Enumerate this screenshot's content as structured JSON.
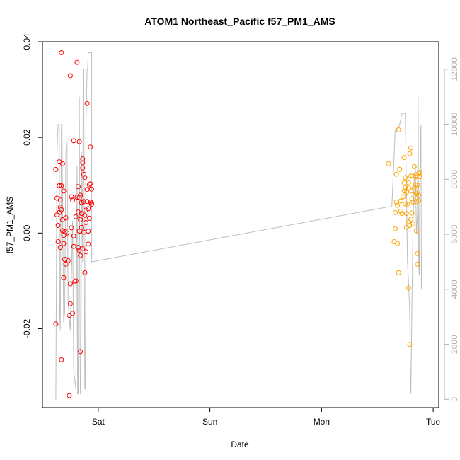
{
  "chart_data": {
    "type": "scatter",
    "title": "ATOM1 Northeast_Pacific f57_PM1_AMS",
    "xlabel": "Date",
    "ylabel": "f57_PM1_AMS",
    "x_ticks": [
      "Sat",
      "Sun",
      "Mon",
      "Tue"
    ],
    "y_ticks": [
      "0.04",
      "0.02",
      "0.00",
      "-0.02"
    ],
    "y_tick_values": [
      0.04,
      0.02,
      0.0,
      -0.02
    ],
    "y2_ticks": [
      "0",
      "2000",
      "4000",
      "6000",
      "8000",
      "10000",
      "12000"
    ],
    "y2_tick_values": [
      0,
      2000,
      4000,
      6000,
      8000,
      10000,
      12000
    ],
    "ylim": [
      -0.0365,
      0.04
    ],
    "y2lim": [
      -300,
      13000
    ],
    "xlim_days": [
      -0.5,
      3.05
    ],
    "grid": false,
    "colors": {
      "segment1": "#ff0000",
      "segment2": "#ffa500",
      "altitude_line": "#bebebe"
    },
    "series": [
      {
        "color": "#ff0000",
        "points": [
          [
            -0.38,
            0.0133
          ],
          [
            -0.38,
            -0.019
          ],
          [
            -0.37,
            0.0073
          ],
          [
            -0.37,
            0.0038
          ],
          [
            -0.36,
            0.0016
          ],
          [
            -0.36,
            -0.0018
          ],
          [
            -0.35,
            0.0043
          ],
          [
            -0.35,
            0.0099
          ],
          [
            -0.35,
            0.0149
          ],
          [
            -0.34,
            0.0069
          ],
          [
            -0.34,
            0.0054
          ],
          [
            -0.34,
            -0.003
          ],
          [
            -0.33,
            0.0049
          ],
          [
            -0.33,
            -0.0265
          ],
          [
            -0.33,
            0.0377
          ],
          [
            -0.33,
            0.0099
          ],
          [
            -0.32,
            0.0145
          ],
          [
            -0.32,
            0.0028
          ],
          [
            -0.32,
            0.0005
          ],
          [
            -0.31,
            0.0088
          ],
          [
            -0.31,
            -0.0005
          ],
          [
            -0.31,
            -0.0022
          ],
          [
            -0.31,
            -0.0093
          ],
          [
            -0.3,
            0.0003
          ],
          [
            -0.3,
            -0.0055
          ],
          [
            -0.29,
            0.0032
          ],
          [
            -0.29,
            -0.0065
          ],
          [
            -0.28,
            0.0
          ],
          [
            -0.27,
            -0.0058
          ],
          [
            -0.26,
            -0.034
          ],
          [
            -0.26,
            -0.0172
          ],
          [
            -0.25,
            -0.0106
          ],
          [
            -0.25,
            -0.0148
          ],
          [
            -0.25,
            0.0329
          ],
          [
            -0.24,
            0.0076
          ],
          [
            -0.24,
            0.0011
          ],
          [
            -0.23,
            -0.0168
          ],
          [
            -0.23,
            0.0069
          ],
          [
            -0.22,
            -0.0028
          ],
          [
            -0.22,
            0.0193
          ],
          [
            -0.22,
            -0.0006
          ],
          [
            -0.21,
            -0.0102
          ],
          [
            -0.2,
            0.0034
          ],
          [
            -0.2,
            -0.01
          ],
          [
            -0.19,
            0.0357
          ],
          [
            -0.19,
            0.0075
          ],
          [
            -0.18,
            0.0044
          ],
          [
            -0.18,
            -0.003
          ],
          [
            -0.18,
            0.0097
          ],
          [
            -0.17,
            0.0074
          ],
          [
            -0.17,
            0.0191
          ],
          [
            -0.17,
            0.0004
          ],
          [
            -0.17,
            -0.0036
          ],
          [
            -0.16,
            -0.0248
          ],
          [
            -0.16,
            0.0079
          ],
          [
            -0.16,
            0.0028
          ],
          [
            -0.16,
            -0.0047
          ],
          [
            -0.15,
            0.0064
          ],
          [
            -0.15,
            0.0041
          ],
          [
            -0.15,
            0.0012
          ],
          [
            -0.14,
            0.0147
          ],
          [
            -0.14,
            0.0155
          ],
          [
            -0.14,
            0.0136
          ],
          [
            -0.14,
            -0.0033
          ],
          [
            -0.13,
            0.0002
          ],
          [
            -0.13,
            0.0066
          ],
          [
            -0.13,
            0.0123
          ],
          [
            -0.12,
            0.0116
          ],
          [
            -0.12,
            0.0037
          ],
          [
            -0.12,
            -0.0083
          ],
          [
            -0.11,
            0.0048
          ],
          [
            -0.11,
            0.0022
          ],
          [
            -0.11,
            -0.0039
          ],
          [
            -0.1,
            0.0091
          ],
          [
            -0.1,
            0.0066
          ],
          [
            -0.1,
            0.0271
          ],
          [
            -0.09,
            0.0051
          ],
          [
            -0.09,
            -0.0023
          ],
          [
            -0.09,
            0.0004
          ],
          [
            -0.08,
            0.0031
          ],
          [
            -0.07,
            0.0065
          ],
          [
            -0.07,
            0.0103
          ],
          [
            -0.07,
            0.018
          ],
          [
            -0.06,
            0.006
          ],
          [
            -0.06,
            0.0063
          ],
          [
            -0.06,
            0.0092
          ],
          [
            -0.08,
            0.0101
          ]
        ]
      },
      {
        "color": "#ffa500",
        "points": [
          [
            2.6,
            0.0145
          ],
          [
            2.65,
            -0.0018
          ],
          [
            2.66,
            0.0043
          ],
          [
            2.66,
            0.0009
          ],
          [
            2.67,
            0.0123
          ],
          [
            2.67,
            0.0065
          ],
          [
            2.68,
            0.0058
          ],
          [
            2.68,
            -0.0022
          ],
          [
            2.69,
            0.0216
          ],
          [
            2.69,
            -0.0083
          ],
          [
            2.7,
            0.0133
          ],
          [
            2.71,
            0.0046
          ],
          [
            2.71,
            0.0067
          ],
          [
            2.72,
            0.0041
          ],
          [
            2.73,
            0.0076
          ],
          [
            2.74,
            0.0105
          ],
          [
            2.74,
            0.0158
          ],
          [
            2.74,
            0.0088
          ],
          [
            2.75,
            0.0116
          ],
          [
            2.75,
            0.0095
          ],
          [
            2.75,
            0.0061
          ],
          [
            2.76,
            0.0085
          ],
          [
            2.76,
            0.0012
          ],
          [
            2.76,
            0.0041
          ],
          [
            2.77,
            0.0061
          ],
          [
            2.78,
            -0.0115
          ],
          [
            2.78,
            0.0094
          ],
          [
            2.78,
            0.0105
          ],
          [
            2.78,
            0.0023
          ],
          [
            2.79,
            0.0016
          ],
          [
            2.79,
            0.0166
          ],
          [
            2.79,
            -0.0233
          ],
          [
            2.8,
            0.0119
          ],
          [
            2.8,
            0.0178
          ],
          [
            2.8,
            0.0088
          ],
          [
            2.8,
            0.0029
          ],
          [
            2.81,
            0.0042
          ],
          [
            2.81,
            0.0072
          ],
          [
            2.81,
            0.0121
          ],
          [
            2.82,
            0.0019
          ],
          [
            2.82,
            0.0065
          ],
          [
            2.83,
            0.0139
          ],
          [
            2.83,
            0.0094
          ],
          [
            2.84,
            0.0086
          ],
          [
            2.84,
            0.0101
          ],
          [
            2.84,
            0.0117
          ],
          [
            2.85,
            0.0121
          ],
          [
            2.85,
            0.0082
          ],
          [
            2.85,
            0.0066
          ],
          [
            2.85,
            0.0005
          ],
          [
            2.86,
            0.0101
          ],
          [
            2.86,
            -0.0043
          ],
          [
            2.86,
            -0.0065
          ],
          [
            2.87,
            0.0125
          ],
          [
            2.87,
            0.0079
          ],
          [
            2.87,
            0.0068
          ],
          [
            2.88,
            0.0127
          ],
          [
            2.88,
            0.0118
          ]
        ]
      }
    ],
    "altitude_line": [
      [
        -0.38,
        -2
      ],
      [
        -0.37,
        9000
      ],
      [
        -0.36,
        10000
      ],
      [
        -0.35,
        10000
      ],
      [
        -0.345,
        3000
      ],
      [
        -0.34,
        2500
      ],
      [
        -0.335,
        6000
      ],
      [
        -0.33,
        10000
      ],
      [
        -0.325,
        10000
      ],
      [
        -0.32,
        7000
      ],
      [
        -0.31,
        2800
      ],
      [
        -0.3,
        3200
      ],
      [
        -0.29,
        9000
      ],
      [
        -0.28,
        9500
      ],
      [
        -0.27,
        3500
      ],
      [
        -0.25,
        2500
      ],
      [
        -0.23,
        6500
      ],
      [
        -0.22,
        1000
      ],
      [
        -0.2,
        400
      ],
      [
        -0.19,
        8500
      ],
      [
        -0.185,
        200
      ],
      [
        -0.18,
        200
      ],
      [
        -0.17,
        11000
      ],
      [
        -0.165,
        4000
      ],
      [
        -0.16,
        200
      ],
      [
        -0.155,
        200
      ],
      [
        -0.15,
        9000
      ],
      [
        -0.14,
        5000
      ],
      [
        -0.135,
        12000
      ],
      [
        -0.13,
        12000
      ],
      [
        -0.125,
        4500
      ],
      [
        -0.12,
        400
      ],
      [
        -0.115,
        400
      ],
      [
        -0.11,
        10000
      ],
      [
        -0.1,
        12000
      ],
      [
        -0.095,
        12000
      ],
      [
        -0.09,
        12600
      ],
      [
        -0.08,
        12600
      ],
      [
        -0.06,
        12600
      ],
      [
        -0.06,
        5000
      ],
      [
        2.6,
        7000
      ],
      [
        2.63,
        7000
      ],
      [
        2.66,
        9800
      ],
      [
        2.68,
        9800
      ],
      [
        2.7,
        10000
      ],
      [
        2.72,
        10400
      ],
      [
        2.74,
        10400
      ],
      [
        2.75,
        10400
      ],
      [
        2.77,
        5000
      ],
      [
        2.78,
        4200
      ],
      [
        2.79,
        3200
      ],
      [
        2.795,
        1000
      ],
      [
        2.8,
        200
      ],
      [
        2.81,
        3500
      ],
      [
        2.82,
        6500
      ],
      [
        2.83,
        8000
      ],
      [
        2.84,
        8500
      ],
      [
        2.85,
        6000
      ],
      [
        2.86,
        6800
      ],
      [
        2.865,
        11000
      ],
      [
        2.87,
        5000
      ],
      [
        2.875,
        4500
      ],
      [
        2.88,
        7500
      ],
      [
        2.89,
        10000
      ],
      [
        2.895,
        4000
      ],
      [
        2.9,
        5200
      ]
    ]
  }
}
